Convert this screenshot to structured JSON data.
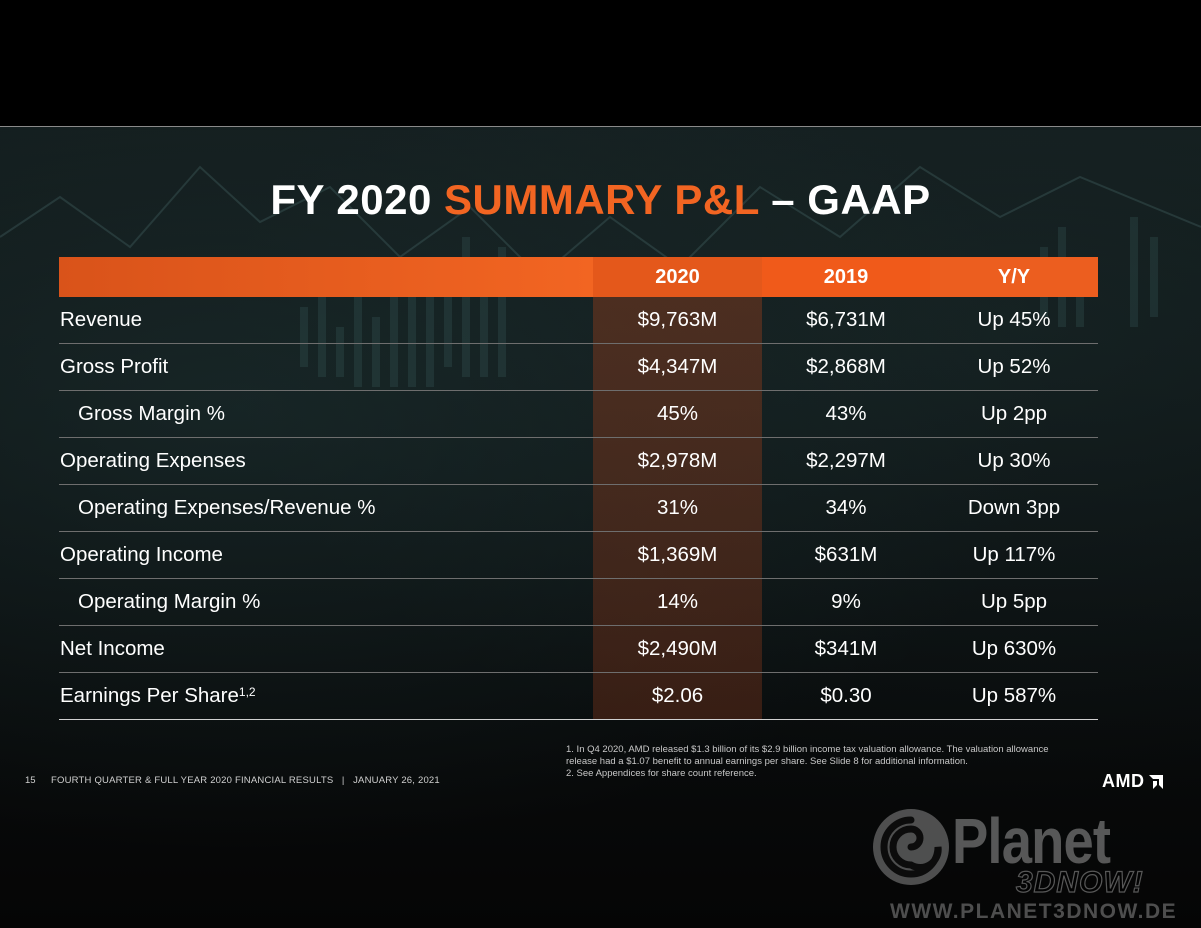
{
  "title": {
    "part1": "FY 2020 ",
    "accent": "SUMMARY P&L",
    "part2": " – GAAP"
  },
  "colors": {
    "accent": "#f26522",
    "header": "#e35d1c"
  },
  "table": {
    "headers": [
      "",
      "2020",
      "2019",
      "Y/Y"
    ],
    "rows": [
      {
        "label": "Revenue",
        "v2020": "$9,763M",
        "v2019": "$6,731M",
        "yy": "Up 45%"
      },
      {
        "label": "Gross Profit",
        "v2020": "$4,347M",
        "v2019": "$2,868M",
        "yy": "Up 52%"
      },
      {
        "label": "Gross Margin %",
        "v2020": "45%",
        "v2019": "43%",
        "yy": "Up 2pp"
      },
      {
        "label": "Operating Expenses",
        "v2020": "$2,978M",
        "v2019": "$2,297M",
        "yy": "Up 30%"
      },
      {
        "label": "Operating Expenses/Revenue %",
        "v2020": "31%",
        "v2019": "34%",
        "yy": "Down 3pp"
      },
      {
        "label": "Operating Income",
        "v2020": "$1,369M",
        "v2019": "$631M",
        "yy": "Up 117%"
      },
      {
        "label": "Operating Margin %",
        "v2020": "14%",
        "v2019": "9%",
        "yy": "Up 5pp"
      },
      {
        "label": "Net Income",
        "v2020": "$2,490M",
        "v2019": "$341M",
        "yy": "Up 630%"
      },
      {
        "label": "Earnings Per Share",
        "sup": "1,2",
        "v2020": "$2.06",
        "v2019": "$0.30",
        "yy": "Up 587%"
      }
    ]
  },
  "footnotes": [
    "1. In Q4 2020, AMD released $1.3 billion of its $2.9 billion income tax valuation allowance.  The valuation allowance release had a $1.07 benefit to annual earnings per share. See Slide 8 for additional information.",
    "2.  See Appendices for share count reference."
  ],
  "footer": {
    "page": "15",
    "text": "FOURTH QUARTER & FULL YEAR 2020 FINANCIAL RESULTS   |   JANUARY 26, 2021"
  },
  "logo": {
    "text": "AMD",
    "icon": "amd-arrow-icon"
  },
  "watermark": {
    "brand": "Planet",
    "sub": "3DNOW!",
    "url": "WWW.PLANET3DNOW.DE"
  }
}
